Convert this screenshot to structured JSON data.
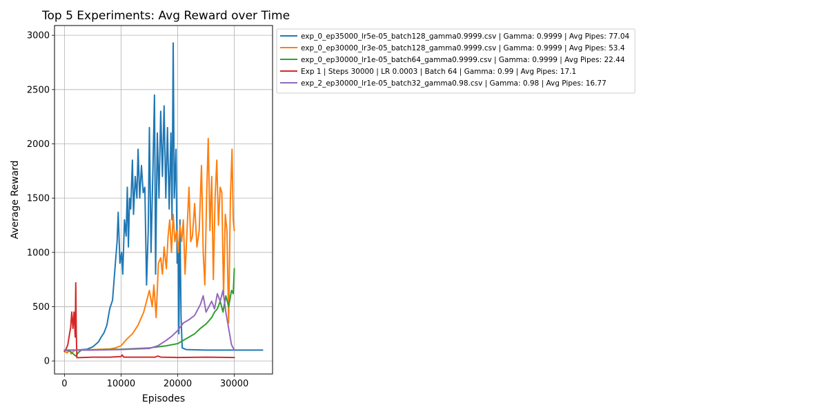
{
  "chart_data": {
    "type": "line",
    "title": "Top 5 Experiments: Avg Reward over Time",
    "xlabel": "Episodes",
    "ylabel": "Average Reward",
    "xlim": [
      -1750,
      36750
    ],
    "ylim": [
      -120,
      3090
    ],
    "xticks": [
      0,
      10000,
      20000,
      30000
    ],
    "yticks": [
      0,
      500,
      1000,
      1500,
      2000,
      2500,
      3000
    ],
    "grid": true,
    "legend_position": "outside-upper-right",
    "series": [
      {
        "name": "exp_0_ep35000_lr5e-05_batch128_gamma0.9999.csv | Gamma: 0.9999 | Avg Pipes: 77.04",
        "color": "#1f77b4",
        "points": [
          [
            0,
            100
          ],
          [
            2000,
            100
          ],
          [
            4000,
            108
          ],
          [
            5000,
            130
          ],
          [
            6000,
            175
          ],
          [
            6500,
            220
          ],
          [
            7000,
            260
          ],
          [
            7500,
            330
          ],
          [
            8000,
            480
          ],
          [
            8500,
            560
          ],
          [
            9000,
            900
          ],
          [
            9300,
            1100
          ],
          [
            9500,
            1370
          ],
          [
            9800,
            900
          ],
          [
            10100,
            1000
          ],
          [
            10300,
            800
          ],
          [
            10600,
            1300
          ],
          [
            10900,
            1150
          ],
          [
            11100,
            1600
          ],
          [
            11300,
            1050
          ],
          [
            11500,
            1500
          ],
          [
            11700,
            1400
          ],
          [
            12000,
            1850
          ],
          [
            12200,
            1350
          ],
          [
            12500,
            1700
          ],
          [
            12800,
            1500
          ],
          [
            13000,
            1950
          ],
          [
            13300,
            1500
          ],
          [
            13600,
            1800
          ],
          [
            13900,
            1550
          ],
          [
            14200,
            1600
          ],
          [
            14500,
            700
          ],
          [
            14800,
            1200
          ],
          [
            15000,
            2150
          ],
          [
            15300,
            1000
          ],
          [
            15600,
            1700
          ],
          [
            15900,
            2450
          ],
          [
            16100,
            800
          ],
          [
            16400,
            2100
          ],
          [
            16700,
            1500
          ],
          [
            17000,
            2300
          ],
          [
            17300,
            1700
          ],
          [
            17600,
            2350
          ],
          [
            17900,
            1500
          ],
          [
            18200,
            2150
          ],
          [
            18500,
            1400
          ],
          [
            18800,
            2100
          ],
          [
            19000,
            1300
          ],
          [
            19200,
            2930
          ],
          [
            19400,
            1500
          ],
          [
            19700,
            1950
          ],
          [
            19900,
            900
          ],
          [
            20100,
            1000
          ],
          [
            20200,
            250
          ],
          [
            20400,
            1300
          ],
          [
            20600,
            400
          ],
          [
            20800,
            120
          ],
          [
            21500,
            105
          ],
          [
            25000,
            100
          ],
          [
            30000,
            100
          ],
          [
            35000,
            100
          ]
        ]
      },
      {
        "name": "exp_0_ep30000_lr3e-05_batch128_gamma0.9999.csv | Gamma: 0.9999 | Avg Pipes: 53.4",
        "color": "#ff7f0e",
        "points": [
          [
            0,
            85
          ],
          [
            500,
            75
          ],
          [
            900,
            100
          ],
          [
            1200,
            65
          ],
          [
            1600,
            90
          ],
          [
            2000,
            100
          ],
          [
            5000,
            105
          ],
          [
            8000,
            110
          ],
          [
            9000,
            120
          ],
          [
            10000,
            140
          ],
          [
            11000,
            200
          ],
          [
            12000,
            250
          ],
          [
            13000,
            330
          ],
          [
            14000,
            450
          ],
          [
            14500,
            550
          ],
          [
            15000,
            650
          ],
          [
            15500,
            500
          ],
          [
            15800,
            700
          ],
          [
            16200,
            400
          ],
          [
            16600,
            900
          ],
          [
            17000,
            950
          ],
          [
            17300,
            800
          ],
          [
            17600,
            1050
          ],
          [
            18000,
            850
          ],
          [
            18300,
            1150
          ],
          [
            18600,
            1300
          ],
          [
            18900,
            1000
          ],
          [
            19200,
            1350
          ],
          [
            19500,
            1100
          ],
          [
            19800,
            1200
          ],
          [
            20100,
            1000
          ],
          [
            20400,
            1250
          ],
          [
            20700,
            1100
          ],
          [
            21000,
            1300
          ],
          [
            21300,
            800
          ],
          [
            21600,
            1150
          ],
          [
            22000,
            1600
          ],
          [
            22300,
            1100
          ],
          [
            22600,
            1150
          ],
          [
            23000,
            1450
          ],
          [
            23400,
            1050
          ],
          [
            23800,
            1200
          ],
          [
            24200,
            1800
          ],
          [
            24500,
            1000
          ],
          [
            24800,
            700
          ],
          [
            25100,
            1500
          ],
          [
            25400,
            2050
          ],
          [
            25700,
            1200
          ],
          [
            26000,
            1700
          ],
          [
            26300,
            750
          ],
          [
            26600,
            1500
          ],
          [
            26900,
            1850
          ],
          [
            27200,
            1250
          ],
          [
            27500,
            1600
          ],
          [
            27800,
            1550
          ],
          [
            28100,
            600
          ],
          [
            28400,
            1350
          ],
          [
            28700,
            1200
          ],
          [
            29000,
            350
          ],
          [
            29300,
            1500
          ],
          [
            29600,
            1950
          ],
          [
            29800,
            1300
          ],
          [
            30000,
            1200
          ]
        ]
      },
      {
        "name": "exp_0_ep30000_lr1e-05_batch64_gamma0.9999.csv | Gamma: 0.9999 | Avg Pipes: 22.44",
        "color": "#2ca02c",
        "points": [
          [
            0,
            100
          ],
          [
            1000,
            90
          ],
          [
            2000,
            45
          ],
          [
            2500,
            80
          ],
          [
            3000,
            100
          ],
          [
            10000,
            108
          ],
          [
            15000,
            120
          ],
          [
            18000,
            140
          ],
          [
            20000,
            160
          ],
          [
            21000,
            190
          ],
          [
            22000,
            220
          ],
          [
            23000,
            250
          ],
          [
            24000,
            300
          ],
          [
            25000,
            340
          ],
          [
            26000,
            400
          ],
          [
            26500,
            450
          ],
          [
            27000,
            480
          ],
          [
            27500,
            550
          ],
          [
            28000,
            450
          ],
          [
            28500,
            600
          ],
          [
            29000,
            500
          ],
          [
            29500,
            650
          ],
          [
            29800,
            620
          ],
          [
            30000,
            850
          ]
        ]
      },
      {
        "name": "Exp 1 | Steps 30000 | LR 0.0003 | Batch 64 | Gamma: 0.99 | Avg Pipes: 17.1",
        "color": "#d62728",
        "points": [
          [
            0,
            90
          ],
          [
            300,
            110
          ],
          [
            600,
            150
          ],
          [
            900,
            250
          ],
          [
            1100,
            310
          ],
          [
            1300,
            450
          ],
          [
            1500,
            300
          ],
          [
            1700,
            450
          ],
          [
            1900,
            220
          ],
          [
            2000,
            720
          ],
          [
            2100,
            250
          ],
          [
            2200,
            30
          ],
          [
            5000,
            35
          ],
          [
            8000,
            35
          ],
          [
            10000,
            40
          ],
          [
            10200,
            55
          ],
          [
            10500,
            35
          ],
          [
            13000,
            35
          ],
          [
            16000,
            35
          ],
          [
            16500,
            45
          ],
          [
            17000,
            35
          ],
          [
            20000,
            32
          ],
          [
            25000,
            35
          ],
          [
            30000,
            32
          ]
        ]
      },
      {
        "name": "exp_2_ep30000_lr1e-05_batch32_gamma0.98.csv | Gamma: 0.98 | Avg Pipes: 16.77",
        "color": "#9467bd",
        "points": [
          [
            0,
            100
          ],
          [
            5000,
            100
          ],
          [
            10000,
            105
          ],
          [
            15000,
            115
          ],
          [
            16500,
            140
          ],
          [
            18000,
            190
          ],
          [
            19000,
            230
          ],
          [
            20000,
            280
          ],
          [
            21000,
            350
          ],
          [
            22000,
            380
          ],
          [
            23000,
            420
          ],
          [
            24000,
            520
          ],
          [
            24500,
            600
          ],
          [
            25000,
            450
          ],
          [
            25500,
            500
          ],
          [
            26000,
            550
          ],
          [
            26500,
            480
          ],
          [
            27000,
            620
          ],
          [
            27500,
            550
          ],
          [
            28000,
            650
          ],
          [
            28500,
            450
          ],
          [
            29000,
            300
          ],
          [
            29500,
            150
          ],
          [
            30000,
            100
          ]
        ]
      }
    ]
  }
}
